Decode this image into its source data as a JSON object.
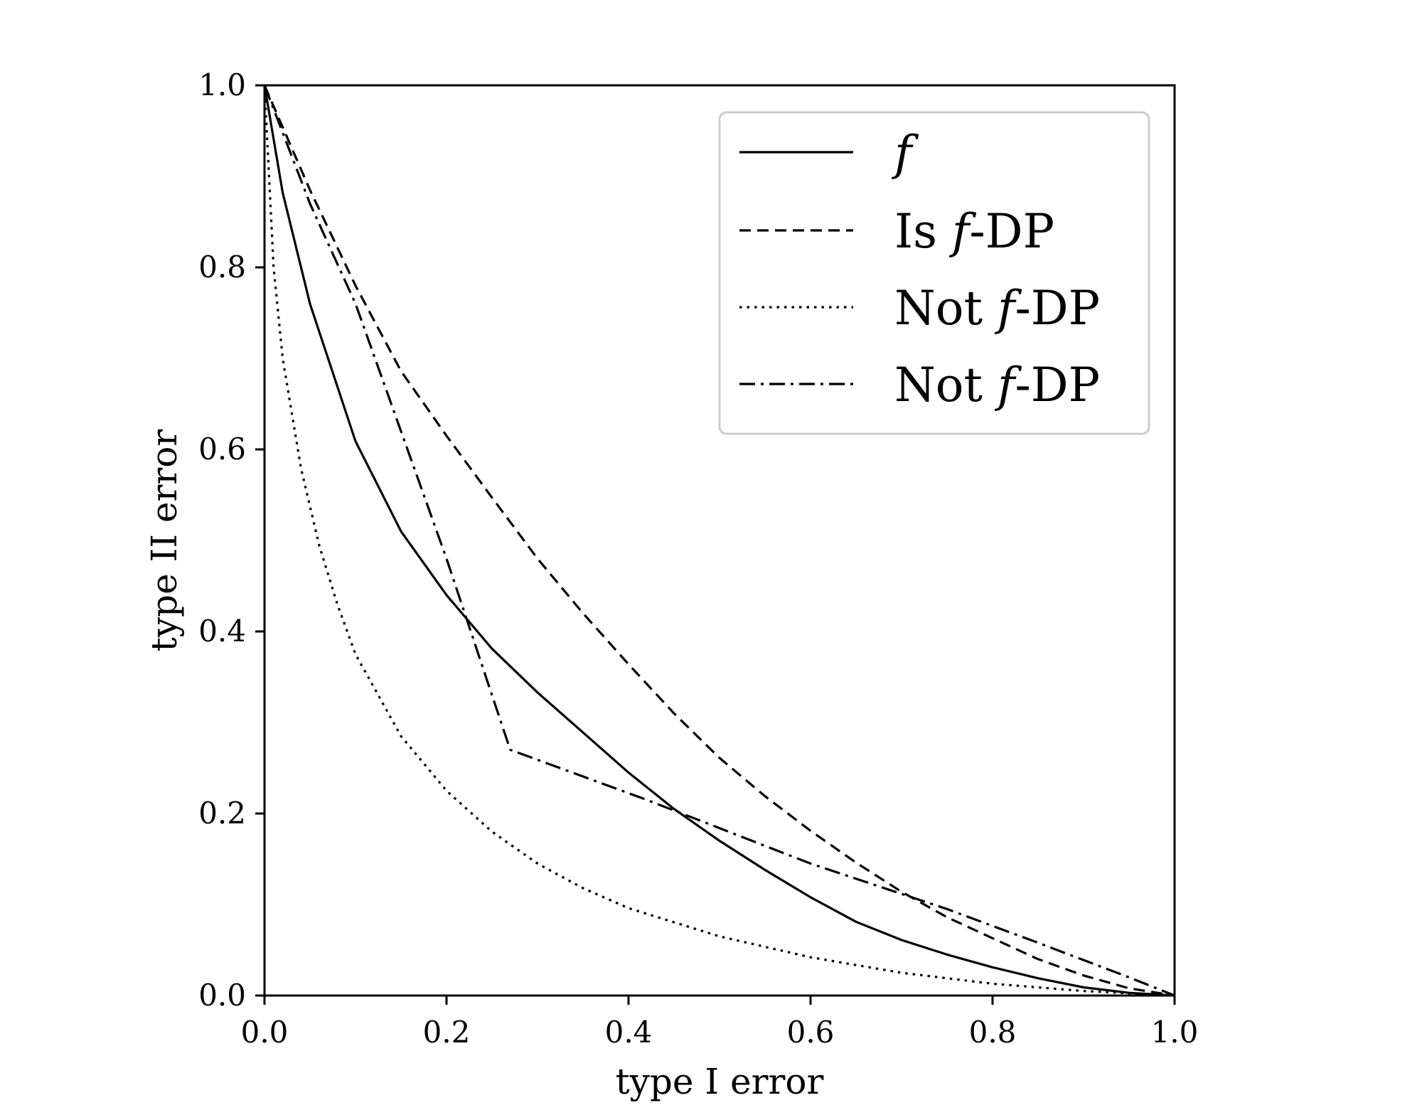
{
  "chart_data": {
    "type": "line",
    "xlabel": "type I error",
    "ylabel": "type II error",
    "xlim": [
      0.0,
      1.0
    ],
    "ylim": [
      0.0,
      1.0
    ],
    "xticks": [
      "0.0",
      "0.2",
      "0.4",
      "0.6",
      "0.8",
      "1.0"
    ],
    "yticks": [
      "0.0",
      "0.2",
      "0.4",
      "0.6",
      "0.8",
      "1.0"
    ],
    "grid": false,
    "legend_position": "top-right",
    "series": [
      {
        "name_math": "f",
        "name_text": "",
        "linestyle": "solid",
        "x": [
          0.0,
          0.02,
          0.05,
          0.1,
          0.15,
          0.2,
          0.25,
          0.3,
          0.35,
          0.4,
          0.45,
          0.5,
          0.55,
          0.6,
          0.65,
          0.7,
          0.75,
          0.8,
          0.85,
          0.9,
          0.95,
          1.0
        ],
        "y": [
          1.0,
          0.882,
          0.76,
          0.609,
          0.51,
          0.44,
          0.381,
          0.333,
          0.289,
          0.245,
          0.205,
          0.17,
          0.138,
          0.108,
          0.081,
          0.061,
          0.045,
          0.031,
          0.019,
          0.009,
          0.003,
          0.0
        ]
      },
      {
        "name_math": "f",
        "name_prefix": "Is ",
        "name_suffix": "-DP",
        "linestyle": "dashed",
        "x": [
          0.0,
          0.05,
          0.1,
          0.15,
          0.2,
          0.25,
          0.3,
          0.35,
          0.4,
          0.45,
          0.5,
          0.55,
          0.6,
          0.65,
          0.7,
          0.75,
          0.8,
          0.85,
          0.9,
          0.95,
          1.0
        ],
        "y": [
          1.0,
          0.885,
          0.78,
          0.686,
          0.615,
          0.547,
          0.48,
          0.42,
          0.364,
          0.31,
          0.261,
          0.219,
          0.181,
          0.146,
          0.114,
          0.086,
          0.063,
          0.04,
          0.022,
          0.008,
          0.0
        ]
      },
      {
        "name_math": "f",
        "name_prefix": "Not ",
        "name_suffix": "-DP",
        "linestyle": "dotted",
        "x": [
          0.0,
          0.01,
          0.02,
          0.04,
          0.06,
          0.08,
          0.1,
          0.15,
          0.2,
          0.25,
          0.3,
          0.35,
          0.4,
          0.5,
          0.6,
          0.7,
          0.8,
          0.9,
          1.0
        ],
        "y": [
          1.0,
          0.8,
          0.7,
          0.58,
          0.495,
          0.43,
          0.375,
          0.285,
          0.225,
          0.18,
          0.145,
          0.118,
          0.096,
          0.065,
          0.042,
          0.025,
          0.013,
          0.005,
          0.0
        ]
      },
      {
        "name_math": "f",
        "name_prefix": "Not ",
        "name_suffix": "-DP",
        "linestyle": "dashdot",
        "x": [
          0.0,
          0.05,
          0.1,
          0.15,
          0.2,
          0.22,
          0.27,
          0.42,
          0.6,
          0.75,
          0.85,
          0.95,
          1.0
        ],
        "y": [
          1.0,
          0.87,
          0.76,
          0.62,
          0.48,
          0.42,
          0.27,
          0.215,
          0.145,
          0.095,
          0.058,
          0.02,
          0.0
        ]
      }
    ]
  }
}
